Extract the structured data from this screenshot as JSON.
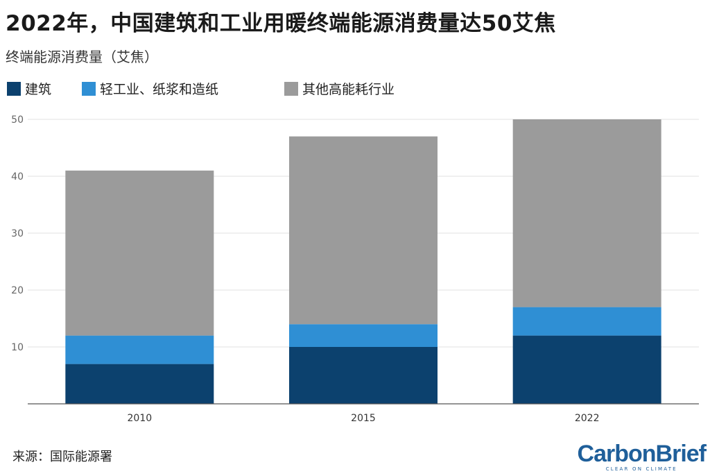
{
  "title": "2022年，中国建筑和工业用暖终端能源消费量达50艾焦",
  "subtitle": "终端能源消费量（艾焦）",
  "source": "来源：国际能源署",
  "brand": {
    "name": "CarbonBrief",
    "tagline": "CLEAR ON CLIMATE"
  },
  "chart_data": {
    "type": "bar",
    "stacked": true,
    "categories": [
      "2010",
      "2015",
      "2022"
    ],
    "series": [
      {
        "name": "建筑",
        "color": "#0c416e",
        "values": [
          7,
          10,
          12
        ]
      },
      {
        "name": "轻工业、纸浆和造纸",
        "color": "#2f8fd4",
        "values": [
          5,
          4,
          5
        ]
      },
      {
        "name": "其他高能耗行业",
        "color": "#9b9b9b",
        "values": [
          29,
          33,
          33
        ]
      }
    ],
    "ylim": [
      0,
      50
    ],
    "yticks": [
      "10",
      "20",
      "30",
      "40",
      "50"
    ],
    "grid": true,
    "legend": "top-left"
  }
}
